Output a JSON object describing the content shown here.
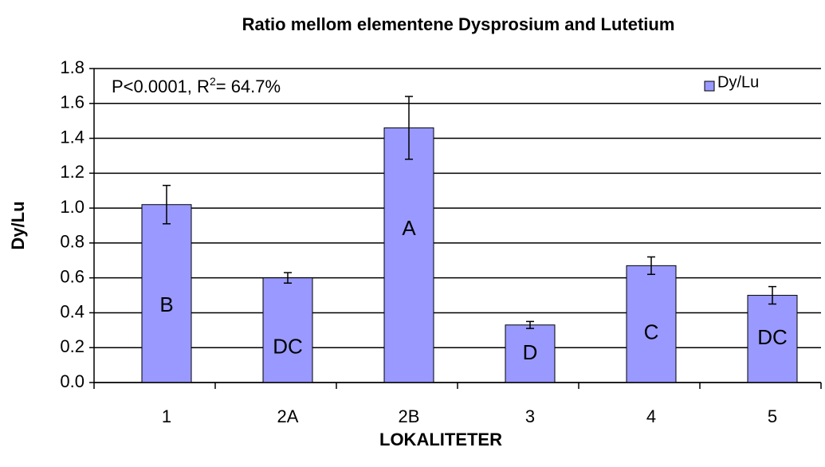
{
  "chart_data": {
    "type": "bar",
    "title": "Ratio mellom  elementene Dysprosium and Lutetium",
    "x_label": "LOKALITETER",
    "y_label": "Dy/Lu",
    "annotation": [
      "P<0.0001, R",
      "2",
      "= 64.7%"
    ],
    "categories": [
      "1",
      "2A",
      "2B",
      "3",
      "4",
      "5"
    ],
    "series": [
      {
        "name": "Dy/Lu",
        "color": "#9999ff",
        "values": [
          1.02,
          0.6,
          1.46,
          0.33,
          0.67,
          0.5
        ],
        "errors": [
          0.11,
          0.03,
          0.18,
          0.02,
          0.05,
          0.05
        ]
      }
    ],
    "bar_labels": [
      "B",
      "DC",
      "A",
      "D",
      "C",
      "DC"
    ],
    "ylim": [
      0,
      1.8
    ],
    "yticks": [
      {
        "value": 0,
        "label": "0.0"
      },
      0.2,
      0.4,
      0.6,
      0.8,
      {
        "value": 1,
        "label": "1.0"
      },
      1.2,
      1.4,
      1.6,
      1.8
    ],
    "grid": true,
    "legend": "top-right"
  }
}
